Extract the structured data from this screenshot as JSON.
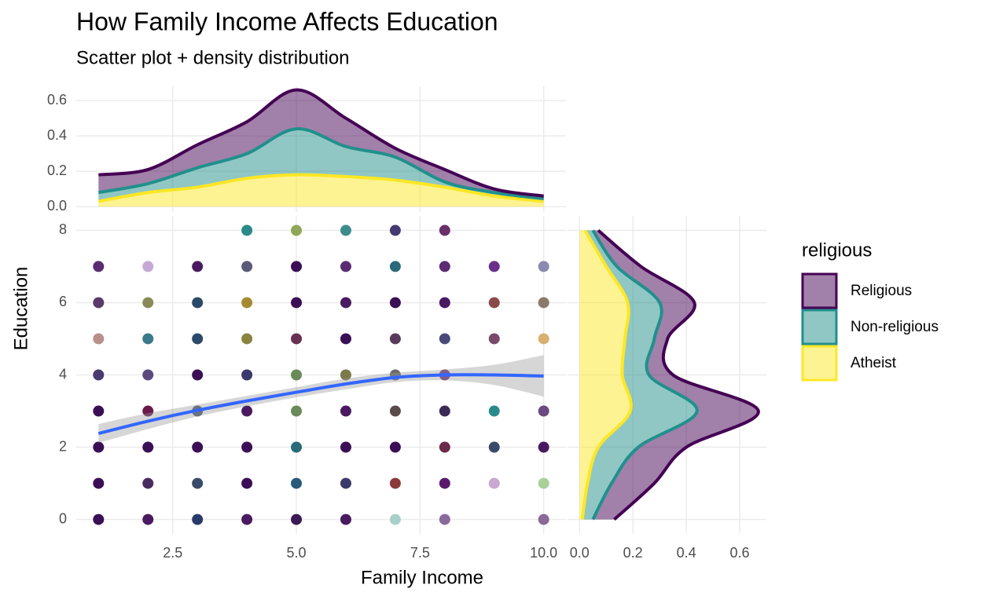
{
  "chart_data": [
    {
      "type": "scatter",
      "title": "How Family Income Affects Education",
      "subtitle": "Scatter plot + density distribution",
      "x_label": "Family Income",
      "y_label": "Education",
      "xlim": [
        0.55,
        10.45
      ],
      "ylim": [
        -0.4,
        8.4
      ],
      "xticks": [
        2.5,
        {
          "value": 5,
          "label": "5.0"
        },
        7.5,
        {
          "value": 10,
          "label": "10.0"
        }
      ],
      "yticks": [
        0,
        2,
        4,
        6,
        8
      ],
      "grid": true,
      "points": {
        "x": [
          4,
          5,
          6,
          7,
          8,
          1,
          2,
          3,
          4,
          5,
          6,
          7,
          8,
          9,
          10,
          1,
          2,
          3,
          4,
          5,
          6,
          7,
          8,
          9,
          10,
          1,
          2,
          3,
          4,
          5,
          6,
          7,
          8,
          9,
          10,
          1,
          2,
          3,
          4,
          5,
          6,
          7,
          8,
          1,
          2,
          3,
          4,
          5,
          6,
          7,
          8,
          9,
          10,
          1,
          2,
          3,
          4,
          5,
          6,
          7,
          8,
          9,
          10,
          1,
          2,
          3,
          4,
          5,
          6,
          7,
          8,
          9,
          10,
          1,
          2,
          3,
          4,
          5,
          6,
          7,
          8,
          10
        ],
        "y": [
          8,
          8,
          8,
          8,
          8,
          7,
          7,
          7,
          7,
          7,
          7,
          7,
          7,
          7,
          7,
          6,
          6,
          6,
          6,
          6,
          6,
          6,
          6,
          6,
          6,
          5,
          5,
          5,
          5,
          5,
          5,
          5,
          5,
          5,
          5,
          4,
          4,
          4,
          4,
          4,
          4,
          4,
          4,
          3,
          3,
          3,
          3,
          3,
          3,
          3,
          3,
          3,
          3,
          2,
          2,
          2,
          2,
          2,
          2,
          2,
          2,
          2,
          2,
          1,
          1,
          1,
          1,
          1,
          1,
          1,
          1,
          1,
          1,
          0,
          0,
          0,
          0,
          0,
          0,
          0,
          0,
          0
        ],
        "colors": [
          "#2a8a8a",
          "#8fa858",
          "#3d8c8c",
          "#463b70",
          "#6a2f6a",
          "#5b2c72",
          "#c5a8d5",
          "#4a1a60",
          "#5a5a78",
          "#3b0f55",
          "#5b2c72",
          "#2b6a7a",
          "#5b2c72",
          "#6a2f8a",
          "#8a8ab0",
          "#5b3a6a",
          "#8a8a5a",
          "#2b4a6a",
          "#a68a30",
          "#3b0f55",
          "#4a1a60",
          "#3b0f55",
          "#4a1a60",
          "#8a4a4a",
          "#8a7a6a",
          "#b8908a",
          "#3a7a8a",
          "#2b4a6a",
          "#8a8440",
          "#6a3050",
          "#3b0f55",
          "#5a3a5a",
          "#4a4a7a",
          "#7a4a6a",
          "#d8b070",
          "#4a3a70",
          "#5a4a80",
          "#3b0f55",
          "#3b3a6a",
          "#6a8a5a",
          "#7a7a4a",
          "#6a6a6a",
          "#6a3a7a",
          "#3b0f55",
          "#6a1a4a",
          "#4a5a6a",
          "#4a1a60",
          "#6a8a5a",
          "#4a1a60",
          "#5a4a4a",
          "#3b2a55",
          "#2a8a8a",
          "#6a4a80",
          "#3b0f55",
          "#3b0f55",
          "#3b0f55",
          "#3b0f55",
          "#2a6a7a",
          "#3b0f55",
          "#3b0f55",
          "#6a2a4a",
          "#3a4a6a",
          "#4a1a60",
          "#3b0f55",
          "#4a2a60",
          "#3a4a6a",
          "#3b0f55",
          "#2a5a7a",
          "#3a3a6a",
          "#8a3a3a",
          "#5a1a6a",
          "#c8a8d0",
          "#a8d098",
          "#3b0f55",
          "#4a1a60",
          "#2a3a6a",
          "#4a1a60",
          "#3b1a55",
          "#4a1a60",
          "#a8d0c8",
          "#8a6a9a",
          "#8a6a9a"
        ]
      },
      "smooth": {
        "color": "#3366ff",
        "x": [
          1,
          2,
          3,
          4,
          5,
          6,
          7,
          8,
          9,
          10
        ],
        "y": [
          2.38,
          2.72,
          3.02,
          3.28,
          3.52,
          3.75,
          3.93,
          4.0,
          4.0,
          3.97
        ],
        "lower": [
          2.12,
          2.5,
          2.85,
          3.13,
          3.38,
          3.6,
          3.8,
          3.85,
          3.72,
          3.4
        ],
        "upper": [
          2.64,
          2.94,
          3.18,
          3.42,
          3.66,
          3.9,
          4.06,
          4.15,
          4.28,
          4.55
        ]
      }
    },
    {
      "type": "stacked-density",
      "orientation": "horizontal",
      "ylim": [
        -0.03,
        0.68
      ],
      "yticks": [
        {
          "value": 0,
          "label": "0.0"
        },
        0.2,
        0.4,
        0.6
      ],
      "legend_title": "religious",
      "legend": "right",
      "x": [
        1,
        2,
        3,
        4,
        5,
        6,
        7,
        8,
        9,
        10
      ],
      "series": [
        {
          "name": "Religious",
          "color": "#440154",
          "values": [
            0.1,
            0.08,
            0.13,
            0.18,
            0.22,
            0.16,
            0.05,
            0.07,
            0.02,
            0.015
          ]
        },
        {
          "name": "Non-religious",
          "color": "#21908c",
          "values": [
            0.05,
            0.05,
            0.11,
            0.14,
            0.26,
            0.17,
            0.13,
            0.03,
            0.02,
            0.015
          ]
        },
        {
          "name": "Atheist",
          "color": "#fde725",
          "values": [
            0.03,
            0.08,
            0.11,
            0.16,
            0.18,
            0.17,
            0.15,
            0.11,
            0.06,
            0.03
          ]
        }
      ]
    },
    {
      "type": "stacked-density",
      "orientation": "vertical",
      "xlim": [
        -0.045,
        0.7
      ],
      "xticks": [
        {
          "value": 0,
          "label": "0.0"
        },
        0.2,
        0.4,
        0.6
      ],
      "y": [
        0,
        1,
        2,
        3,
        4,
        5,
        6,
        7,
        8
      ],
      "series": [
        {
          "color": "#440154",
          "values": [
            0.08,
            0.16,
            0.18,
            0.23,
            0.09,
            0.05,
            0.13,
            0.09,
            0.02
          ]
        },
        {
          "color": "#21908c",
          "values": [
            0.04,
            0.09,
            0.15,
            0.25,
            0.1,
            0.11,
            0.12,
            0.04,
            0.03
          ]
        },
        {
          "color": "#fde725",
          "values": [
            0.01,
            0.03,
            0.07,
            0.19,
            0.16,
            0.17,
            0.18,
            0.1,
            0.02
          ]
        }
      ]
    }
  ]
}
